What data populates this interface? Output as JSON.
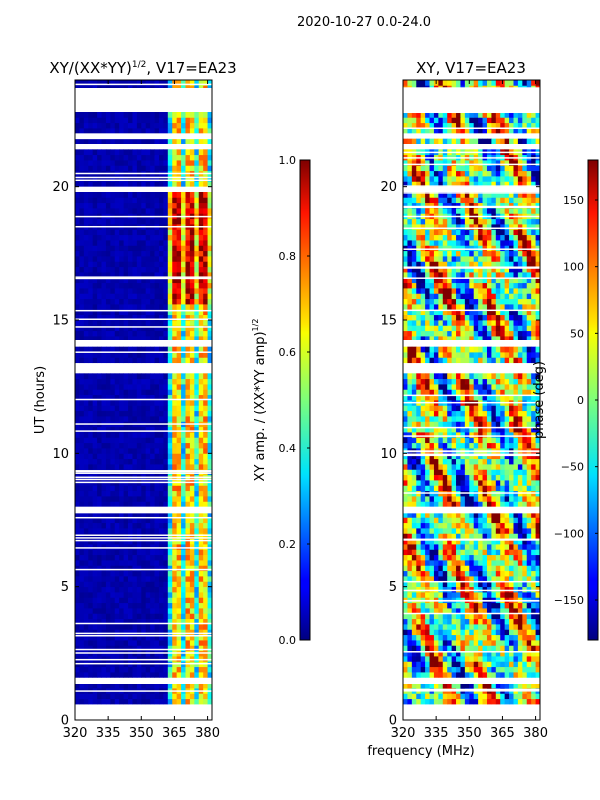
{
  "page": {
    "suptitle": "2020-10-27 0.0-24.0"
  },
  "chart_data": [
    {
      "type": "heatmap",
      "title_main": "XY/(XX*YY)",
      "title_sup": "1/2",
      "title_rest": ", V17=EA23",
      "xlabel": "",
      "ylabel": "UT (hours)",
      "xlim": [
        320,
        382
      ],
      "ylim": [
        0,
        24
      ],
      "xticks": [
        320,
        335,
        350,
        365,
        380
      ],
      "yticks": [
        0,
        5,
        10,
        15,
        20
      ],
      "colorbar": {
        "label_main": "XY amp. / (XX*YY amp)",
        "label_sup": "1/2",
        "range": [
          0.0,
          1.0
        ],
        "ticks": [
          "0.0",
          "0.2",
          "0.4",
          "0.6",
          "0.8",
          "1.0"
        ],
        "tick_values": [
          0.0,
          0.2,
          0.4,
          0.6,
          0.8,
          1.0
        ]
      },
      "gaps_ut_hours": [
        [
          22.8,
          23.7
        ],
        [
          0.0,
          0.5
        ],
        [
          1.35,
          1.55
        ],
        [
          7.75,
          8.0
        ],
        [
          13.1,
          13.3
        ],
        [
          14.05,
          14.25
        ],
        [
          19.85,
          20.0
        ],
        [
          21.45,
          21.6
        ],
        [
          21.85,
          22.0
        ]
      ],
      "active_band_mhz": [
        362,
        381
      ],
      "description_values": {
        "low_band_level": 0.02,
        "high_band_level_range": [
          0.2,
          0.85
        ]
      }
    },
    {
      "type": "heatmap",
      "title_main": "XY, V17=EA23",
      "xlabel": "frequency (MHz)",
      "ylabel": "",
      "xlim": [
        320,
        382
      ],
      "ylim": [
        0,
        24
      ],
      "xticks": [
        320,
        335,
        350,
        365,
        380
      ],
      "yticks": [
        0,
        5,
        10,
        15,
        20
      ],
      "colorbar": {
        "label_main": "phase (deg)",
        "range": [
          -180,
          180
        ],
        "ticks": [
          "−150",
          "−100",
          "−50",
          "0",
          "50",
          "100",
          "150"
        ],
        "tick_values": [
          -150,
          -100,
          -50,
          0,
          50,
          100,
          150
        ]
      },
      "gaps_ut_hours": [
        [
          22.8,
          23.7
        ],
        [
          0.0,
          0.5
        ],
        [
          1.35,
          1.55
        ],
        [
          7.75,
          8.0
        ],
        [
          13.1,
          13.3
        ],
        [
          14.05,
          14.25
        ],
        [
          19.85,
          20.0
        ],
        [
          21.45,
          21.6
        ],
        [
          21.85,
          22.0
        ]
      ]
    }
  ]
}
